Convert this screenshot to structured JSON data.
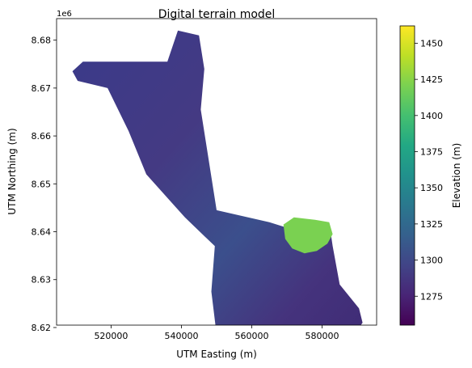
{
  "chart_data": {
    "type": "heatmap",
    "title": "Digital terrain model",
    "xlabel": "UTM Easting (m)",
    "ylabel": "UTM Northing (m)",
    "y_offset_label": "1e6",
    "xlim": [
      504500,
      595500
    ],
    "ylim": [
      8.6205,
      8.6845
    ],
    "x_ticks": [
      520000,
      540000,
      560000,
      580000
    ],
    "x_tick_labels": [
      "520000",
      "540000",
      "560000",
      "580000"
    ],
    "y_ticks": [
      8.62,
      8.63,
      8.64,
      8.65,
      8.66,
      8.67,
      8.68
    ],
    "y_tick_labels": [
      "8.62",
      "8.63",
      "8.64",
      "8.65",
      "8.66",
      "8.67",
      "8.68"
    ],
    "colorbar": {
      "label": "Elevation (m)",
      "colormap": "viridis",
      "range": [
        1255,
        1462
      ],
      "ticks": [
        1275,
        1300,
        1325,
        1350,
        1375,
        1400,
        1425,
        1450
      ],
      "tick_labels": [
        "1275",
        "1300",
        "1325",
        "1350",
        "1375",
        "1400",
        "1425",
        "1450"
      ]
    },
    "region_outline": [
      [
        509000,
        8.6735
      ],
      [
        512000,
        8.6755
      ],
      [
        524000,
        8.6755
      ],
      [
        536000,
        8.6755
      ],
      [
        539000,
        8.682
      ],
      [
        545000,
        8.681
      ],
      [
        546500,
        8.674
      ],
      [
        545500,
        8.6655
      ],
      [
        550000,
        8.6445
      ],
      [
        565000,
        8.642
      ],
      [
        571500,
        8.6405
      ],
      [
        576000,
        8.6415
      ],
      [
        580000,
        8.642
      ],
      [
        582500,
        8.6395
      ],
      [
        583000,
        8.637
      ],
      [
        585000,
        8.629
      ],
      [
        590500,
        8.624
      ],
      [
        591500,
        8.621
      ],
      [
        589500,
        8.619
      ],
      [
        584000,
        8.617
      ],
      [
        577000,
        8.6135
      ],
      [
        568000,
        8.6165
      ],
      [
        554000,
        8.618
      ],
      [
        550000,
        8.6185
      ],
      [
        548500,
        8.6275
      ],
      [
        549500,
        8.637
      ],
      [
        541000,
        8.643
      ],
      [
        530000,
        8.652
      ],
      [
        525000,
        8.661
      ],
      [
        519000,
        8.67
      ],
      [
        510500,
        8.6715
      ]
    ],
    "high_elevation_zone": {
      "elevation_m": 1430,
      "outline": [
        [
          569000,
          8.6415
        ],
        [
          572000,
          8.643
        ],
        [
          578000,
          8.6425
        ],
        [
          582000,
          8.642
        ],
        [
          583000,
          8.6395
        ],
        [
          581500,
          8.6375
        ],
        [
          578500,
          8.636
        ],
        [
          575000,
          8.6355
        ],
        [
          571500,
          8.6365
        ],
        [
          569500,
          8.6385
        ]
      ]
    }
  }
}
